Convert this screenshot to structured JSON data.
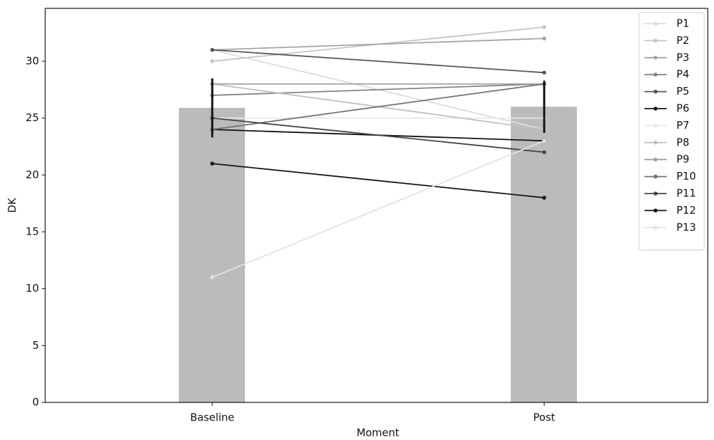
{
  "chart_data": {
    "type": "bar",
    "xlabel": "Moment",
    "ylabel": "DK",
    "categories": [
      "Baseline",
      "Post"
    ],
    "values": [
      25.9,
      26.0
    ],
    "errors": [
      2.6,
      2.3
    ],
    "color": "#bbbbbb",
    "error_color": "#111111",
    "ylim": [
      0,
      34.65
    ],
    "yticks": [
      0,
      5,
      10,
      15,
      20,
      25,
      30
    ],
    "legend": "upper right",
    "series": [
      {
        "name": "P1",
        "color": "#dcdcdc",
        "values": [
          31,
          24
        ]
      },
      {
        "name": "P2",
        "color": "#c4c4c4",
        "values": [
          30,
          33
        ]
      },
      {
        "name": "P3",
        "color": "#a4a4a4",
        "values": [
          31,
          32
        ]
      },
      {
        "name": "P4",
        "color": "#848484",
        "values": [
          27,
          28
        ]
      },
      {
        "name": "P5",
        "color": "#555555",
        "values": [
          31,
          29
        ]
      },
      {
        "name": "P6",
        "color": "#111111",
        "values": [
          24,
          23
        ]
      },
      {
        "name": "P7",
        "color": "#e8e8e8",
        "values": [
          25,
          25
        ]
      },
      {
        "name": "P8",
        "color": "#c0c0c0",
        "values": [
          28,
          24
        ]
      },
      {
        "name": "P9",
        "color": "#a0a0a0",
        "values": [
          28,
          28
        ]
      },
      {
        "name": "P10",
        "color": "#727272",
        "values": [
          24,
          28
        ]
      },
      {
        "name": "P11",
        "color": "#444444",
        "values": [
          25,
          22
        ]
      },
      {
        "name": "P12",
        "color": "#111111",
        "values": [
          21,
          18
        ]
      },
      {
        "name": "P13",
        "color": "#e2e2e2",
        "values": [
          11,
          23
        ]
      }
    ]
  }
}
